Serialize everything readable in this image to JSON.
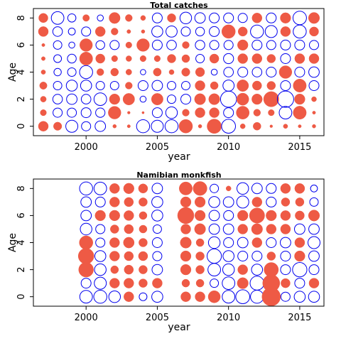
{
  "chart_data": [
    {
      "type": "bubble",
      "title": "Total catches",
      "xlabel": "year",
      "ylabel": "Age",
      "xlim": [
        1996.3,
        2016.7
      ],
      "ylim": [
        -0.7,
        8.7
      ],
      "xticks": [
        2000,
        2005,
        2010,
        2015
      ],
      "yticks": [
        0,
        2,
        4,
        6,
        8
      ],
      "years": [
        1997,
        1998,
        1999,
        2000,
        2001,
        2002,
        2003,
        2004,
        2005,
        2006,
        2007,
        2008,
        2009,
        2010,
        2011,
        2012,
        2013,
        2014,
        2015,
        2016
      ],
      "ages": [
        0,
        1,
        2,
        3,
        4,
        5,
        6,
        7,
        8
      ],
      "marker_colors": {
        "positive": "#ee5a45",
        "negative": "#0000ee"
      },
      "residuals": [
        [
          0.4,
          0.15,
          0.14,
          0.22,
          0.08,
          0.06,
          0.04,
          0.4,
          0.35
        ],
        [
          0.28,
          -0.35,
          -0.38,
          -0.3,
          -0.22,
          -0.25,
          -0.3,
          -0.38,
          -0.66
        ],
        [
          -0.6,
          -0.35,
          -0.45,
          -0.5,
          -0.3,
          -0.32,
          -0.15,
          -0.2,
          -0.28
        ],
        [
          -0.35,
          -0.4,
          -0.38,
          -0.5,
          -0.7,
          0.7,
          0.65,
          -0.35,
          0.18
        ],
        [
          -0.45,
          -0.36,
          -0.65,
          -0.3,
          0.2,
          0.35,
          -0.32,
          0.4,
          -0.15
        ],
        [
          0.05,
          0.65,
          0.45,
          -0.3,
          0.25,
          0.15,
          -0.35,
          0.2,
          0.5
        ],
        [
          0.04,
          0.03,
          0.55,
          0.2,
          0.14,
          0.13,
          0.15,
          0.06,
          0.2
        ],
        [
          -0.7,
          0.02,
          -0.15,
          -0.4,
          -0.12,
          0.15,
          0.65,
          0.05,
          0.1
        ],
        [
          -0.6,
          -0.4,
          0.55,
          -0.45,
          0.26,
          0.15,
          -0.4,
          -0.5,
          -0.4
        ],
        [
          -0.7,
          -0.55,
          -0.3,
          -0.3,
          0.1,
          0.3,
          -0.38,
          -0.52,
          0.3
        ],
        [
          0.75,
          0.2,
          -0.4,
          -0.3,
          0.28,
          0.25,
          0.2,
          -0.35,
          -0.55
        ],
        [
          0.05,
          0.4,
          0.5,
          0.4,
          0.34,
          -0.3,
          -0.37,
          -0.32,
          -0.45
        ],
        [
          0.85,
          0.4,
          0.5,
          0.25,
          -0.15,
          0.35,
          -0.35,
          -0.4,
          -0.4
        ],
        [
          -0.8,
          -0.4,
          -1.05,
          -0.52,
          -0.38,
          -0.42,
          -0.35,
          0.75,
          -0.4
        ],
        [
          0.1,
          0.68,
          0.6,
          0.55,
          -0.4,
          0.4,
          0.45,
          0.35,
          -0.35
        ],
        [
          0.25,
          0.2,
          0.45,
          0.35,
          -0.38,
          0.4,
          -0.4,
          -0.7,
          0.4
        ],
        [
          0.03,
          0.15,
          0.95,
          0.3,
          -0.4,
          0.3,
          -0.35,
          -0.6,
          -0.4
        ],
        [
          0.08,
          -0.65,
          -1.1,
          -0.4,
          0.65,
          -0.4,
          -0.4,
          0.4,
          0.45
        ],
        [
          0.04,
          0.7,
          0.45,
          0.7,
          -0.4,
          0.4,
          -0.4,
          -0.7,
          -0.75
        ],
        [
          0.05,
          0.04,
          0.1,
          -0.4,
          -0.45,
          0.4,
          -0.35,
          0.35,
          0.5
        ]
      ]
    },
    {
      "type": "bubble",
      "title": "Namibian monkfish",
      "xlabel": "year",
      "ylabel": "Age",
      "xlim": [
        1996.3,
        2016.7
      ],
      "ylim": [
        -0.7,
        8.7
      ],
      "xticks": [
        2000,
        2005,
        2010,
        2015
      ],
      "yticks": [
        0,
        2,
        4,
        6,
        8
      ],
      "years": [
        2000,
        2001,
        2002,
        2003,
        2004,
        2005,
        2007,
        2008,
        2009,
        2010,
        2011,
        2012,
        2013,
        2014,
        2015,
        2016
      ],
      "ages": [
        0,
        1,
        2,
        3,
        4,
        5,
        6,
        7,
        8
      ],
      "marker_colors": {
        "positive": "#ee5a45",
        "negative": "#0000ee"
      },
      "residuals": [
        [
          -0.65,
          -0.4,
          0.9,
          1.0,
          0.75,
          -0.55,
          -0.45,
          -0.45,
          -0.7
        ],
        [
          -0.7,
          -0.6,
          -0.55,
          -0.5,
          -0.35,
          -0.35,
          0.45,
          -0.4,
          -0.65
        ],
        [
          -0.55,
          0.4,
          0.25,
          0.4,
          0.4,
          0.3,
          0.45,
          0.4,
          0.4
        ],
        [
          0.4,
          0.4,
          0.35,
          0.35,
          0.48,
          0.35,
          0.4,
          0.35,
          0.45
        ],
        [
          -0.25,
          0.3,
          0.3,
          0.35,
          0.3,
          0.25,
          0.25,
          0.3,
          0.35
        ],
        [
          -0.5,
          0.4,
          -0.45,
          -0.35,
          -0.4,
          -0.3,
          -0.5,
          -0.5,
          -0.45
        ],
        [
          0.4,
          0.25,
          0.45,
          0.45,
          0.5,
          0.4,
          1.1,
          0.45,
          0.7
        ],
        [
          0.4,
          0.25,
          0.3,
          0.3,
          0.25,
          0.5,
          0.45,
          0.45,
          0.8
        ],
        [
          0.6,
          -0.3,
          -0.65,
          -0.85,
          -0.55,
          -0.45,
          -0.45,
          -0.5,
          -0.3
        ],
        [
          -0.65,
          -0.65,
          -0.55,
          -0.5,
          -0.4,
          -0.45,
          -0.4,
          -0.45,
          0.1
        ],
        [
          -0.8,
          0.5,
          0.4,
          -0.4,
          -0.45,
          0.4,
          0.45,
          -0.6,
          -0.55
        ],
        [
          -0.7,
          -0.8,
          -0.5,
          -0.4,
          0.4,
          0.5,
          0.95,
          0.4,
          -0.45
        ],
        [
          1.4,
          1.2,
          0.85,
          0.3,
          -0.4,
          0.4,
          0.45,
          -0.4,
          -0.4
        ],
        [
          -0.35,
          0.35,
          -0.4,
          -0.4,
          -0.45,
          0.4,
          0.4,
          0.3,
          0.4
        ],
        [
          -0.5,
          -0.4,
          -0.85,
          0.45,
          0.4,
          -0.45,
          0.35,
          0.3,
          0.4
        ],
        [
          -0.5,
          0.4,
          -0.4,
          -0.45,
          -0.6,
          -0.45,
          0.5,
          -0.3,
          -0.2
        ]
      ]
    }
  ]
}
